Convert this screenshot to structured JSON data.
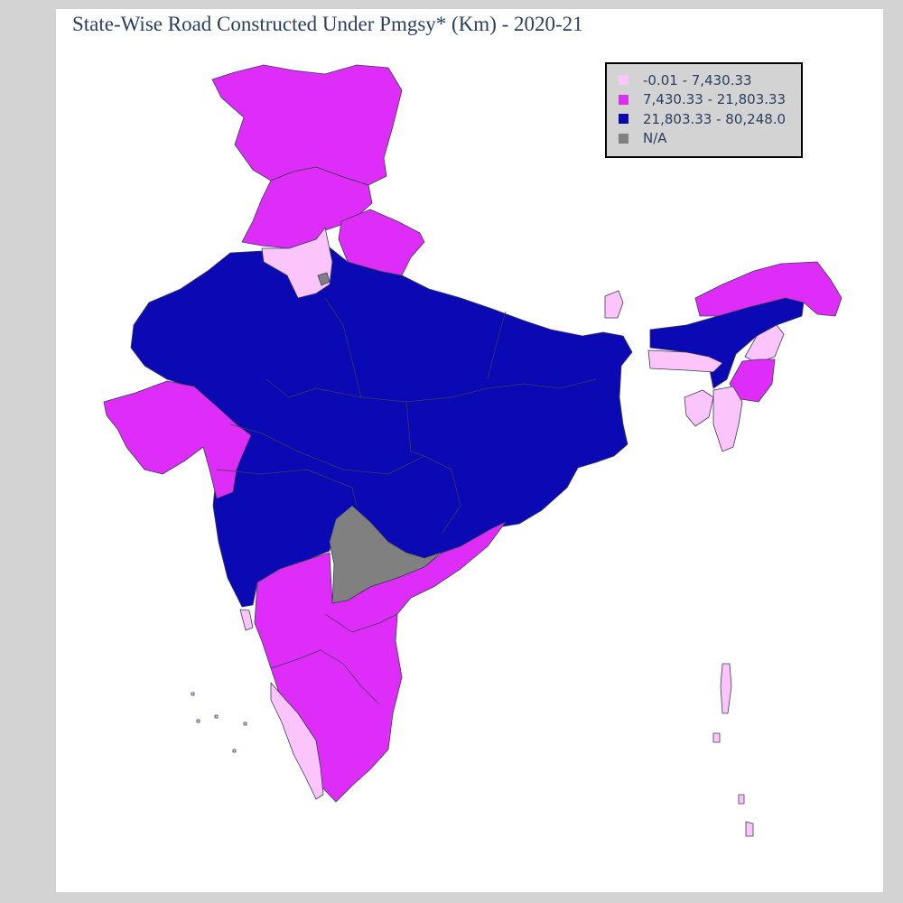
{
  "title": "State-Wise Road Constructed Under Pmgsy* (Km) - 2020-21",
  "colors": {
    "low": "#fbc5fc",
    "mid": "#de2cf9",
    "high": "#0a09b4",
    "na": "#808080",
    "border": "#3c3c5a"
  },
  "legend": [
    {
      "label": "-0.01 - 7,430.33",
      "color": "#fbc5fc"
    },
    {
      "label": "7,430.33 - 21,803.33",
      "color": "#de2cf9"
    },
    {
      "label": "21,803.33 - 80,248.0",
      "color": "#0a09b4"
    },
    {
      "label": "N/A",
      "color": "#808080"
    }
  ]
}
